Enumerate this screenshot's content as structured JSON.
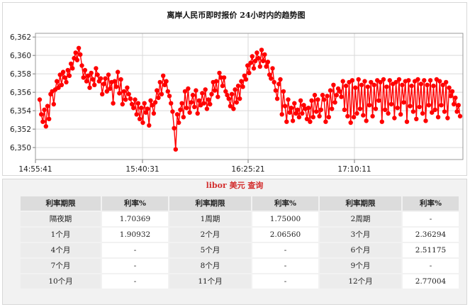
{
  "chart_data": {
    "type": "line",
    "title": "离岸人民币即时报价 24小时内的趋势图",
    "x_ticks": [
      "14:55:41",
      "15:40:31",
      "16:25:21",
      "17:10:11"
    ],
    "y_ticks": [
      "6,350",
      "6,352",
      "6,354",
      "6,356",
      "6,358",
      "6,360",
      "6,362"
    ],
    "ylim": [
      6.3487,
      6.3624
    ],
    "grid": true,
    "series": [
      {
        "color": "#ff0000",
        "marker": "circle",
        "x_span_minutes": 210,
        "values": [
          6.3552,
          6.3536,
          6.3528,
          6.3541,
          6.3523,
          6.3545,
          6.3531,
          6.3558,
          6.3561,
          6.3547,
          6.3563,
          6.3572,
          6.3565,
          6.3579,
          6.3568,
          6.3582,
          6.3576,
          6.3571,
          6.3584,
          6.3578,
          6.3591,
          6.3586,
          6.3597,
          6.3603,
          6.3595,
          6.3608,
          6.3601,
          6.3589,
          6.3576,
          6.3584,
          6.3572,
          6.3578,
          6.3565,
          6.3581,
          6.3574,
          6.3568,
          6.3586,
          6.3579,
          6.3572,
          6.3575,
          6.3558,
          6.3569,
          6.3575,
          6.3561,
          6.3579,
          6.3564,
          6.3571,
          6.3548,
          6.3572,
          6.3566,
          6.3582,
          6.3559,
          6.3574,
          6.3547,
          6.3561,
          6.3552,
          6.3565,
          6.3558,
          6.3553,
          6.3547,
          6.3543,
          6.3552,
          6.3536,
          6.3548,
          6.3531,
          6.3543,
          6.3527,
          6.3548,
          6.3538,
          6.3542,
          6.3524,
          6.3551,
          6.3546,
          6.3537,
          6.3549,
          6.3562,
          6.3554,
          6.3571,
          6.3558,
          6.3578,
          6.3568,
          6.3572,
          6.3561,
          6.3556,
          6.3548,
          6.3539,
          6.3521,
          6.3498,
          6.3536,
          6.3527,
          6.3541,
          6.3548,
          6.3533,
          6.3561,
          6.3543,
          6.3564,
          6.3538,
          6.3549,
          6.3557,
          6.3544,
          6.3562,
          6.3537,
          6.3551,
          6.3546,
          6.3559,
          6.3548,
          6.3563,
          6.3542,
          6.3552,
          6.3547,
          6.3558,
          6.3571,
          6.3562,
          6.3572,
          6.3555,
          6.3581,
          6.3576,
          6.3567,
          6.3576,
          6.3561,
          6.3557,
          6.3553,
          6.3545,
          6.3558,
          6.3542,
          6.3563,
          6.3549,
          6.3567,
          6.3553,
          6.3572,
          6.3566,
          6.3578,
          6.3574,
          6.3589,
          6.3581,
          6.3592,
          6.3599,
          6.3586,
          6.3594,
          6.3603,
          6.3597,
          6.3588,
          6.3606,
          6.3594,
          6.3601,
          6.3588,
          6.3593,
          6.3579,
          6.3575,
          6.3586,
          6.3571,
          6.3562,
          6.3553,
          6.3569,
          6.3574,
          6.3536,
          6.3561,
          6.3545,
          6.3528,
          6.3552,
          6.3538,
          6.3543,
          6.3529,
          6.3548,
          6.3537,
          6.3541,
          6.3533,
          6.3551,
          6.3537,
          6.3546,
          6.3542,
          6.3531,
          6.3543,
          6.3528,
          6.3551,
          6.3533,
          6.3557,
          6.3539,
          6.3552,
          6.3534,
          6.3541,
          6.3557,
          6.3552,
          6.3528,
          6.3556,
          6.3533,
          6.3562,
          6.3542,
          6.3568,
          6.3549,
          6.3557,
          6.3564,
          6.3561,
          6.3555,
          6.3572,
          6.3541,
          6.3567,
          6.3534,
          6.3571,
          6.3527,
          6.3573,
          6.3533,
          6.3565,
          6.3537,
          6.3574,
          6.3542,
          6.3568,
          6.3535,
          6.3572,
          6.3529,
          6.3566,
          6.3546,
          6.3571,
          6.3534,
          6.3568,
          6.3542,
          6.3573,
          6.3551,
          6.3571,
          6.3528,
          6.3574,
          6.3541,
          6.3566,
          6.3537,
          6.3573,
          6.3547,
          6.3569,
          6.3532,
          6.3571,
          6.3543,
          6.3574,
          6.3536,
          6.3568,
          6.3549,
          6.3572,
          6.3528,
          6.3573,
          6.3545,
          6.3567,
          6.3539,
          6.3572,
          6.3531,
          6.3574,
          6.3544,
          6.3569,
          6.3537,
          6.3573,
          6.3529,
          6.3568,
          6.3546,
          6.3573,
          6.3538,
          6.3567,
          6.3541,
          6.3574,
          6.3533,
          6.3572,
          6.3546,
          6.3568,
          6.3539,
          6.3571,
          6.3532,
          6.3565,
          6.3556,
          6.3561,
          6.3547,
          6.3554,
          6.3539,
          6.3546,
          6.3534
        ]
      }
    ]
  },
  "libor": {
    "title": "libor 美元 查询",
    "headers": [
      "利率期限",
      "利率%",
      "利率期限",
      "利率%",
      "利率期限",
      "利率%"
    ],
    "rows": [
      [
        "隔夜期",
        "1.70369",
        "1周期",
        "1.75000",
        "2周期",
        "-"
      ],
      [
        "1个月",
        "1.90932",
        "2个月",
        "2.06560",
        "3个月",
        "2.36294"
      ],
      [
        "4个月",
        "-",
        "5个月",
        "-",
        "6个月",
        "2.51175"
      ],
      [
        "7个月",
        "-",
        "8个月",
        "-",
        "9个月",
        "-"
      ],
      [
        "10个月",
        "-",
        "11个月",
        "-",
        "12个月",
        "2.77004"
      ]
    ]
  }
}
